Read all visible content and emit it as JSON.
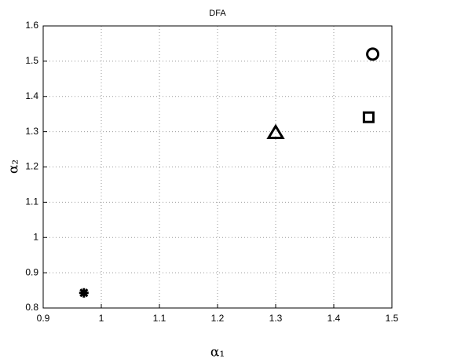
{
  "chart_data": {
    "type": "scatter",
    "title": "DFA",
    "xlabel": "α₁",
    "ylabel": "α₂",
    "points": [
      {
        "x": 0.97,
        "y": 0.843,
        "marker": "asterisk"
      },
      {
        "x": 1.3,
        "y": 1.298,
        "marker": "triangle"
      },
      {
        "x": 1.46,
        "y": 1.341,
        "marker": "square"
      },
      {
        "x": 1.467,
        "y": 1.52,
        "marker": "circle"
      }
    ],
    "color": "#000000",
    "xlim": [
      0.9,
      1.5
    ],
    "xticks": [
      0.9,
      1,
      1.1,
      1.2,
      1.3,
      1.4,
      1.5
    ],
    "ylim": [
      0.8,
      1.6
    ],
    "yticks": [
      0.8,
      0.9,
      1,
      1.1,
      1.2,
      1.3,
      1.4,
      1.5,
      1.6
    ],
    "grid": true
  }
}
